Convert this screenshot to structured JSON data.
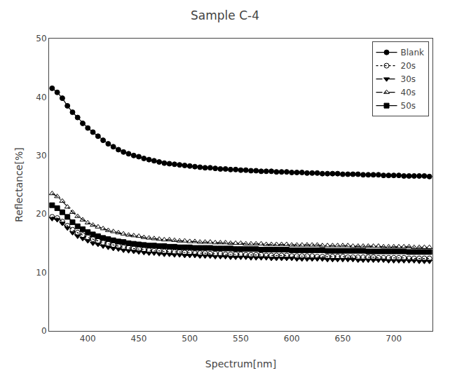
{
  "chart_data": {
    "type": "line",
    "title": "Sample C-4",
    "x_label": "Spectrum[nm]",
    "y_label": "Reflectance[%]",
    "xlim": [
      362,
      738
    ],
    "ylim": [
      0,
      50
    ],
    "xticks": [
      400,
      450,
      500,
      550,
      600,
      650,
      700
    ],
    "yticks": [
      0,
      10,
      20,
      30,
      40,
      50
    ],
    "grid": false,
    "legend": "upper right",
    "x": [
      365,
      370,
      375,
      380,
      385,
      390,
      395,
      400,
      405,
      410,
      415,
      420,
      425,
      430,
      435,
      440,
      445,
      450,
      455,
      460,
      465,
      470,
      475,
      480,
      485,
      490,
      495,
      500,
      505,
      510,
      515,
      520,
      525,
      530,
      535,
      540,
      545,
      550,
      555,
      560,
      565,
      570,
      575,
      580,
      585,
      590,
      595,
      600,
      605,
      610,
      615,
      620,
      625,
      630,
      635,
      640,
      645,
      650,
      655,
      660,
      665,
      670,
      675,
      680,
      685,
      690,
      695,
      700,
      705,
      710,
      715,
      720,
      725,
      730,
      735
    ],
    "series": [
      {
        "name": "Blank",
        "color": "black",
        "marker": "circle",
        "line_style": "solid",
        "values": [
          41.5,
          40.8,
          39.8,
          38.5,
          37.4,
          36.5,
          35.5,
          34.7,
          34.0,
          33.3,
          32.6,
          32.0,
          31.5,
          31.0,
          30.6,
          30.3,
          30.0,
          29.8,
          29.5,
          29.3,
          29.1,
          28.9,
          28.7,
          28.6,
          28.5,
          28.4,
          28.3,
          28.2,
          28.1,
          28.0,
          27.9,
          27.9,
          27.8,
          27.7,
          27.7,
          27.6,
          27.6,
          27.5,
          27.5,
          27.4,
          27.4,
          27.3,
          27.3,
          27.3,
          27.2,
          27.2,
          27.2,
          27.1,
          27.1,
          27.1,
          27.0,
          27.0,
          27.0,
          26.9,
          26.9,
          26.9,
          26.9,
          26.8,
          26.8,
          26.8,
          26.8,
          26.7,
          26.7,
          26.7,
          26.7,
          26.6,
          26.6,
          26.6,
          26.6,
          26.5,
          26.5,
          26.5,
          26.5,
          26.5,
          26.4
        ]
      },
      {
        "name": "20s",
        "color": "black",
        "marker": "circle-open",
        "line_style": "dot",
        "values": [
          19.5,
          19.3,
          18.7,
          18.0,
          17.3,
          16.8,
          16.4,
          16.0,
          15.7,
          15.4,
          15.1,
          14.9,
          14.7,
          14.5,
          14.3,
          14.2,
          14.1,
          14.0,
          13.9,
          13.8,
          13.7,
          13.7,
          13.6,
          13.6,
          13.5,
          13.5,
          13.4,
          13.4,
          13.3,
          13.3,
          13.3,
          13.2,
          13.2,
          13.2,
          13.1,
          13.1,
          13.1,
          13.1,
          13.0,
          13.0,
          13.0,
          13.0,
          12.9,
          12.9,
          12.9,
          12.9,
          12.9,
          12.8,
          12.8,
          12.8,
          12.8,
          12.8,
          12.7,
          12.7,
          12.7,
          12.7,
          12.7,
          12.7,
          12.6,
          12.6,
          12.6,
          12.6,
          12.6,
          12.6,
          12.5,
          12.5,
          12.5,
          12.5,
          12.5,
          12.5,
          12.4,
          12.4,
          12.4,
          12.4,
          12.4
        ]
      },
      {
        "name": "30s",
        "color": "black",
        "marker": "triangle-down",
        "line_style": "dash",
        "values": [
          19.2,
          19.0,
          18.4,
          17.6,
          16.8,
          16.2,
          15.8,
          15.4,
          15.0,
          14.8,
          14.5,
          14.3,
          14.1,
          14.0,
          13.8,
          13.7,
          13.6,
          13.5,
          13.4,
          13.3,
          13.3,
          13.2,
          13.1,
          13.1,
          13.0,
          13.0,
          12.9,
          12.9,
          12.9,
          12.8,
          12.8,
          12.8,
          12.7,
          12.7,
          12.7,
          12.6,
          12.6,
          12.6,
          12.6,
          12.5,
          12.5,
          12.5,
          12.5,
          12.4,
          12.4,
          12.4,
          12.4,
          12.4,
          12.3,
          12.3,
          12.3,
          12.3,
          12.3,
          12.3,
          12.2,
          12.2,
          12.2,
          12.2,
          12.2,
          12.2,
          12.1,
          12.1,
          12.1,
          12.1,
          12.1,
          12.1,
          12.0,
          12.0,
          12.0,
          12.0,
          12.0,
          12.0,
          11.9,
          11.9,
          11.9
        ]
      },
      {
        "name": "40s",
        "color": "black",
        "marker": "triangle-up-open",
        "line_style": "dashdot",
        "values": [
          23.5,
          23.0,
          22.2,
          21.2,
          20.3,
          19.6,
          19.0,
          18.5,
          18.1,
          17.8,
          17.5,
          17.2,
          17.0,
          16.8,
          16.6,
          16.4,
          16.3,
          16.2,
          16.0,
          15.9,
          15.8,
          15.7,
          15.6,
          15.6,
          15.5,
          15.4,
          15.4,
          15.3,
          15.3,
          15.2,
          15.2,
          15.2,
          15.1,
          15.1,
          15.1,
          15.0,
          15.0,
          15.0,
          14.9,
          14.9,
          14.9,
          14.9,
          14.8,
          14.8,
          14.8,
          14.8,
          14.8,
          14.7,
          14.7,
          14.7,
          14.7,
          14.7,
          14.7,
          14.6,
          14.6,
          14.6,
          14.6,
          14.6,
          14.6,
          14.5,
          14.5,
          14.5,
          14.5,
          14.5,
          14.5,
          14.4,
          14.4,
          14.4,
          14.4,
          14.4,
          14.4,
          14.3,
          14.3,
          14.3,
          14.3
        ]
      },
      {
        "name": "50s",
        "color": "black",
        "marker": "square",
        "line_style": "solid",
        "values": [
          21.5,
          21.0,
          20.3,
          19.5,
          18.6,
          17.9,
          17.4,
          16.9,
          16.5,
          16.2,
          15.9,
          15.7,
          15.5,
          15.3,
          15.2,
          15.0,
          14.9,
          14.8,
          14.7,
          14.6,
          14.6,
          14.5,
          14.5,
          14.4,
          14.4,
          14.3,
          14.3,
          14.3,
          14.2,
          14.2,
          14.2,
          14.2,
          14.1,
          14.1,
          14.1,
          14.1,
          14.0,
          14.0,
          14.0,
          14.0,
          14.0,
          13.9,
          13.9,
          13.9,
          13.9,
          13.9,
          13.9,
          13.8,
          13.8,
          13.8,
          13.8,
          13.8,
          13.8,
          13.8,
          13.7,
          13.7,
          13.7,
          13.7,
          13.7,
          13.7,
          13.7,
          13.7,
          13.6,
          13.6,
          13.6,
          13.6,
          13.6,
          13.6,
          13.6,
          13.6,
          13.5,
          13.5,
          13.5,
          13.5,
          13.5
        ]
      }
    ]
  }
}
